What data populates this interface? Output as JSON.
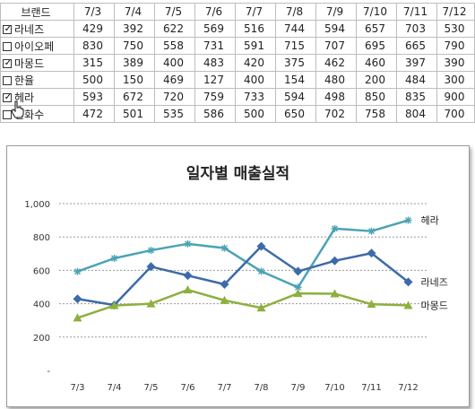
{
  "table": {
    "header_label": "브랜드",
    "dates": [
      "7/3",
      "7/4",
      "7/5",
      "7/6",
      "7/7",
      "7/8",
      "7/9",
      "7/10",
      "7/11",
      "7/12"
    ],
    "rows": [
      {
        "brand": "라네즈",
        "checked": true,
        "values": [
          429,
          392,
          622,
          569,
          516,
          744,
          594,
          657,
          703,
          530
        ]
      },
      {
        "brand": "아이오페",
        "checked": false,
        "values": [
          830,
          750,
          558,
          731,
          591,
          715,
          707,
          695,
          665,
          790
        ]
      },
      {
        "brand": "마몽드",
        "checked": true,
        "values": [
          315,
          389,
          400,
          483,
          420,
          375,
          462,
          460,
          397,
          390
        ]
      },
      {
        "brand": "한율",
        "checked": false,
        "values": [
          500,
          150,
          469,
          127,
          400,
          154,
          480,
          200,
          484,
          300
        ]
      },
      {
        "brand": "헤라",
        "checked": true,
        "values": [
          593,
          672,
          720,
          759,
          733,
          594,
          498,
          850,
          835,
          900
        ]
      },
      {
        "brand": "설화수",
        "checked": false,
        "values": [
          472,
          501,
          535,
          586,
          500,
          650,
          702,
          758,
          804,
          700
        ]
      }
    ]
  },
  "chart_data": {
    "type": "line",
    "title": "일자별 매출실적",
    "categories": [
      "7/3",
      "7/4",
      "7/5",
      "7/6",
      "7/7",
      "7/8",
      "7/9",
      "7/10",
      "7/11",
      "7/12"
    ],
    "ylim": [
      0,
      1000
    ],
    "yticks": [
      0,
      200,
      400,
      600,
      800,
      1000
    ],
    "ytick_labels": [
      "-",
      "200",
      "400",
      "600",
      "800",
      "1,000"
    ],
    "grid": true,
    "series": [
      {
        "name": "헤라",
        "color": "#4aa3b5",
        "marker": "star",
        "values": [
          593,
          672,
          720,
          759,
          733,
          594,
          498,
          850,
          835,
          900
        ]
      },
      {
        "name": "라네즈",
        "color": "#3d6aa8",
        "marker": "diamond",
        "values": [
          429,
          392,
          622,
          569,
          516,
          744,
          594,
          657,
          703,
          530
        ]
      },
      {
        "name": "마몽드",
        "color": "#8db03f",
        "marker": "triangle",
        "values": [
          315,
          389,
          400,
          483,
          420,
          375,
          462,
          460,
          397,
          390
        ]
      }
    ]
  }
}
